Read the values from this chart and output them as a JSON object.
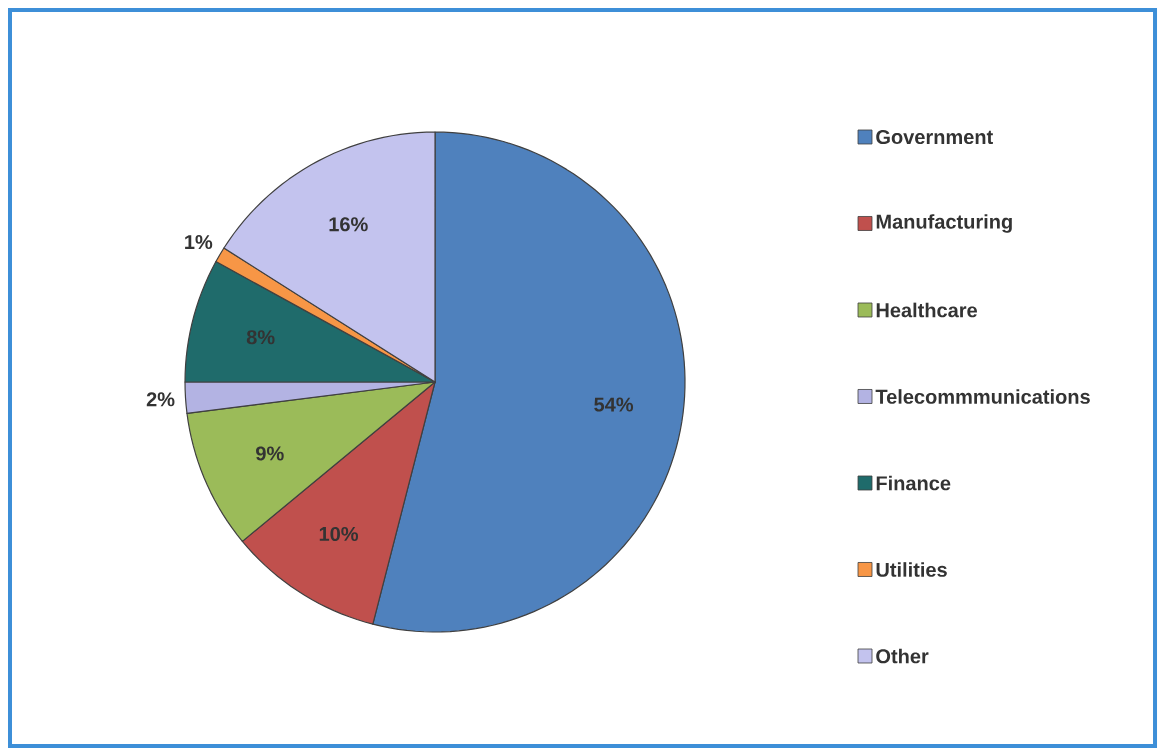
{
  "chart_data": {
    "type": "pie",
    "categories": [
      "Government",
      "Manufacturing",
      "Healthcare",
      "Telecommmunications",
      "Finance",
      "Utilities",
      "Other"
    ],
    "values": [
      54,
      10,
      9,
      2,
      8,
      1,
      16
    ],
    "value_labels": [
      "54%",
      "10%",
      "9%",
      "2%",
      "8%",
      "1%",
      "16%"
    ],
    "colors": [
      "#4f81bd",
      "#c0504d",
      "#9bbb59",
      "#b3b3e3",
      "#1f6b6b",
      "#f79646",
      "#c3c3ee"
    ],
    "legend": "right"
  }
}
